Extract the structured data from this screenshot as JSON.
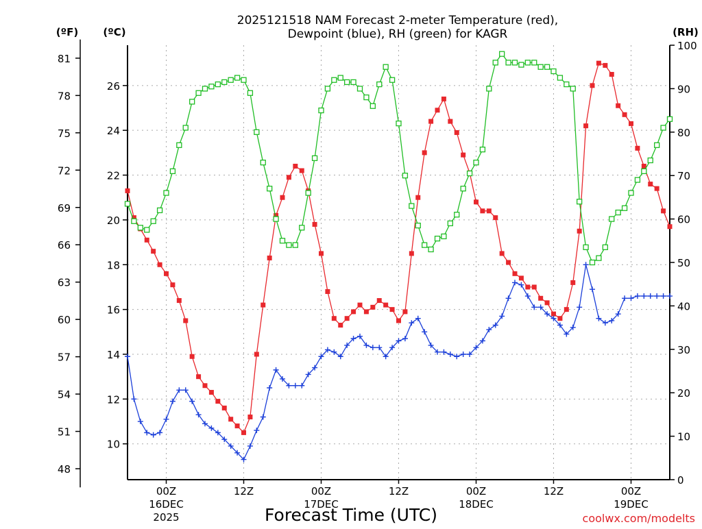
{
  "chart_data": {
    "type": "line",
    "title_line1": "2025121518 NAM Forecast 2-meter Temperature (red),",
    "title_line2": "Dewpoint (blue), RH (green) for KAGR",
    "xlabel": "Forecast Time (UTC)",
    "credit": "coolwx.com/modelts",
    "left_f_unit": "(ºF)",
    "left_c_unit": "(ºC)",
    "right_unit": "(RH)",
    "x_range_hours": [
      0,
      84
    ],
    "celsius_range": [
      8.4,
      27.8
    ],
    "rh_range": [
      0,
      100
    ],
    "f_ticks": [
      "48",
      "51",
      "54",
      "57",
      "60",
      "63",
      "66",
      "69",
      "72",
      "75",
      "78",
      "81"
    ],
    "c_ticks": [
      "10",
      "12",
      "14",
      "16",
      "18",
      "20",
      "22",
      "24",
      "26"
    ],
    "rh_ticks": [
      "0",
      "10",
      "20",
      "30",
      "40",
      "50",
      "60",
      "70",
      "80",
      "90",
      "100"
    ],
    "x_ticks": [
      {
        "hour": 6,
        "line1": "00Z",
        "line2": "16DEC",
        "line3": "2025"
      },
      {
        "hour": 18,
        "line1": "12Z",
        "line2": "",
        "line3": ""
      },
      {
        "hour": 30,
        "line1": "00Z",
        "line2": "17DEC",
        "line3": ""
      },
      {
        "hour": 42,
        "line1": "12Z",
        "line2": "",
        "line3": ""
      },
      {
        "hour": 54,
        "line1": "00Z",
        "line2": "18DEC",
        "line3": ""
      },
      {
        "hour": 66,
        "line1": "12Z",
        "line2": "",
        "line3": ""
      },
      {
        "hour": 78,
        "line1": "00Z",
        "line2": "19DEC",
        "line3": ""
      }
    ],
    "series": [
      {
        "name": "Temperature",
        "unit": "C",
        "color": "#e8282d",
        "marker": "square-filled",
        "hours": [
          0,
          1,
          2,
          3,
          4,
          5,
          6,
          7,
          8,
          9,
          10,
          11,
          12,
          13,
          14,
          15,
          16,
          17,
          18,
          19,
          20,
          21,
          22,
          23,
          24,
          25,
          26,
          27,
          28,
          29,
          30,
          31,
          32,
          33,
          34,
          35,
          36,
          37,
          38,
          39,
          40,
          41,
          42,
          43,
          44,
          45,
          46,
          47,
          48,
          49,
          50,
          51,
          52,
          53,
          54,
          55,
          56,
          57,
          58,
          59,
          60,
          61,
          62,
          63,
          64,
          65,
          66,
          67,
          68,
          69,
          70,
          71,
          72,
          73,
          74,
          75,
          76,
          77,
          78,
          79,
          80,
          81,
          82,
          83,
          84
        ],
        "values": [
          21.3,
          20.1,
          19.6,
          19.1,
          18.6,
          18.0,
          17.6,
          17.1,
          16.4,
          15.5,
          13.9,
          13.0,
          12.6,
          12.3,
          11.9,
          11.6,
          11.1,
          10.8,
          10.5,
          11.2,
          14.0,
          16.2,
          18.3,
          20.2,
          21.0,
          21.9,
          22.4,
          22.2,
          21.3,
          19.8,
          18.5,
          16.8,
          15.6,
          15.3,
          15.6,
          15.9,
          16.2,
          15.9,
          16.1,
          16.4,
          16.2,
          16.0,
          15.5,
          15.9,
          18.5,
          21.0,
          23.0,
          24.4,
          24.9,
          25.4,
          24.4,
          23.9,
          22.9,
          22.1,
          20.8,
          20.4,
          20.4,
          20.1,
          18.5,
          18.1,
          17.6,
          17.4,
          17.0,
          17.0,
          16.5,
          16.3,
          15.8,
          15.6,
          16.0,
          17.2,
          19.5,
          24.2,
          26.0,
          27.0,
          26.9,
          26.5,
          25.1,
          24.7,
          24.3,
          23.2,
          22.4,
          21.6,
          21.4,
          20.4,
          19.7
        ]
      },
      {
        "name": "Dewpoint",
        "unit": "C",
        "color": "#1b3fd9",
        "marker": "plus",
        "hours": [
          0,
          1,
          2,
          3,
          4,
          5,
          6,
          7,
          8,
          9,
          10,
          11,
          12,
          13,
          14,
          15,
          16,
          17,
          18,
          19,
          20,
          21,
          22,
          23,
          24,
          25,
          26,
          27,
          28,
          29,
          30,
          31,
          32,
          33,
          34,
          35,
          36,
          37,
          38,
          39,
          40,
          41,
          42,
          43,
          44,
          45,
          46,
          47,
          48,
          49,
          50,
          51,
          52,
          53,
          54,
          55,
          56,
          57,
          58,
          59,
          60,
          61,
          62,
          63,
          64,
          65,
          66,
          67,
          68,
          69,
          70,
          71,
          72,
          73,
          74,
          75,
          76,
          77,
          78,
          79,
          80,
          81,
          82,
          83,
          84
        ],
        "values": [
          13.9,
          12.0,
          11.0,
          10.5,
          10.4,
          10.5,
          11.1,
          11.9,
          12.4,
          12.4,
          11.9,
          11.3,
          10.9,
          10.7,
          10.5,
          10.2,
          9.9,
          9.6,
          9.3,
          9.9,
          10.6,
          11.2,
          12.5,
          13.3,
          12.9,
          12.6,
          12.6,
          12.6,
          13.1,
          13.4,
          13.9,
          14.2,
          14.1,
          13.9,
          14.4,
          14.7,
          14.8,
          14.4,
          14.3,
          14.3,
          13.9,
          14.3,
          14.6,
          14.7,
          15.4,
          15.6,
          15.0,
          14.4,
          14.1,
          14.1,
          14.0,
          13.9,
          14.0,
          14.0,
          14.3,
          14.6,
          15.1,
          15.3,
          15.7,
          16.5,
          17.2,
          17.1,
          16.6,
          16.1,
          16.1,
          15.8,
          15.6,
          15.3,
          14.9,
          15.2,
          16.1,
          18.0,
          16.9,
          15.6,
          15.4,
          15.5,
          15.8,
          16.5,
          16.5,
          16.6,
          16.6,
          16.6,
          16.6,
          16.6,
          16.6
        ]
      },
      {
        "name": "RH",
        "unit": "%",
        "color": "#1fbd24",
        "marker": "square-open",
        "hours": [
          0,
          1,
          2,
          3,
          4,
          5,
          6,
          7,
          8,
          9,
          10,
          11,
          12,
          13,
          14,
          15,
          16,
          17,
          18,
          19,
          20,
          21,
          22,
          23,
          24,
          25,
          26,
          27,
          28,
          29,
          30,
          31,
          32,
          33,
          34,
          35,
          36,
          37,
          38,
          39,
          40,
          41,
          42,
          43,
          44,
          45,
          46,
          47,
          48,
          49,
          50,
          51,
          52,
          53,
          54,
          55,
          56,
          57,
          58,
          59,
          60,
          61,
          62,
          63,
          64,
          65,
          66,
          67,
          68,
          69,
          70,
          71,
          72,
          73,
          74,
          75,
          76,
          77,
          78,
          79,
          80,
          81,
          82,
          83,
          84
        ],
        "values": [
          63.5,
          59.5,
          58.0,
          57.5,
          59.5,
          62.0,
          66.0,
          71.0,
          77.0,
          81.0,
          87.0,
          89.0,
          90.0,
          90.5,
          91.0,
          91.5,
          92.0,
          92.5,
          92.0,
          89.0,
          80.0,
          73.0,
          67.0,
          60.0,
          55.0,
          54.0,
          54.0,
          58.0,
          66.0,
          74.0,
          85.0,
          90.0,
          92.0,
          92.5,
          91.5,
          91.5,
          90.0,
          88.0,
          86.0,
          91.0,
          95.0,
          92.0,
          82.0,
          70.0,
          63.0,
          58.5,
          54.0,
          53.0,
          55.5,
          56.0,
          59.0,
          61.0,
          67.0,
          70.5,
          73.0,
          76.0,
          90.0,
          96.0,
          98.0,
          96.0,
          96.0,
          95.5,
          96.0,
          96.0,
          95.0,
          95.0,
          94.0,
          92.5,
          91.0,
          90.0,
          64.0,
          53.5,
          50.0,
          51.0,
          53.5,
          60.0,
          61.5,
          62.5,
          66.0,
          69.0,
          71.0,
          73.5,
          77.0,
          81.0,
          83.0
        ]
      }
    ]
  }
}
